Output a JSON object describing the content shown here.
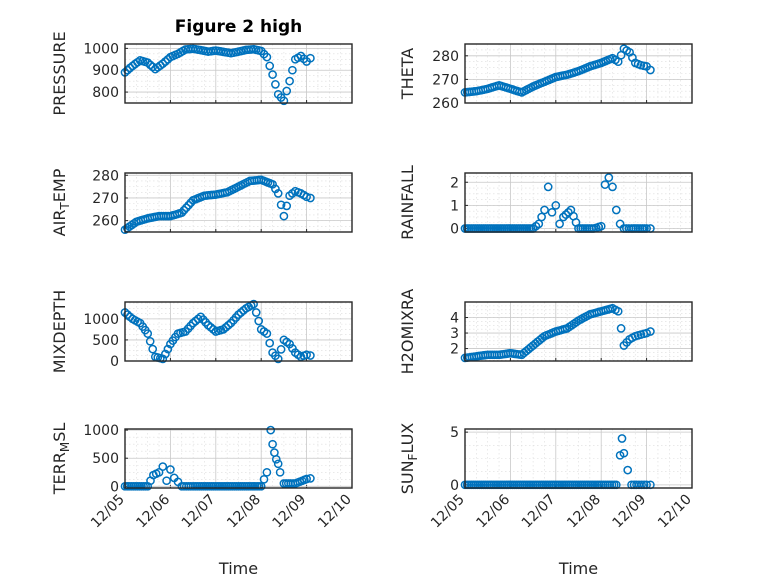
{
  "figure": {
    "title": "Figure 2 high",
    "series_color": "#0072BD",
    "x_label": "Time",
    "x_ticks": [
      "12/05",
      "12/06",
      "12/07",
      "12/08",
      "12/09",
      "12/10"
    ]
  },
  "chart_data": [
    {
      "type": "scatter",
      "ylabel": "PRESSURE",
      "ylim": [
        750,
        1020
      ],
      "yticks": [
        800,
        900,
        1000
      ],
      "xlim": [
        "12/05",
        "12/10"
      ],
      "grid": true,
      "x": [
        "12/05 00:00",
        "12/05 04:00",
        "12/05 08:00",
        "12/05 12:00",
        "12/05 16:00",
        "12/05 20:00",
        "12/06 00:00",
        "12/06 04:00",
        "12/06 08:00",
        "12/06 12:00",
        "12/06 16:00",
        "12/06 20:00",
        "12/07 00:00",
        "12/07 04:00",
        "12/07 08:00",
        "12/07 12:00",
        "12/07 16:00",
        "12/07 20:00",
        "12/08 00:00",
        "12/08 03:00",
        "12/08 06:00",
        "12/08 09:00",
        "12/08 12:00",
        "12/08 15:00",
        "12/08 18:00",
        "12/08 21:00",
        "12/09 00:00",
        "12/09 02:00"
      ],
      "y": [
        890,
        920,
        945,
        935,
        905,
        930,
        960,
        975,
        995,
        998,
        992,
        985,
        990,
        984,
        978,
        985,
        993,
        996,
        988,
        960,
        880,
        790,
        760,
        850,
        950,
        965,
        940,
        955
      ]
    },
    {
      "type": "scatter",
      "ylabel": "THETA",
      "ylim": [
        260,
        285
      ],
      "yticks": [
        260,
        270,
        280
      ],
      "xlim": [
        "12/05",
        "12/10"
      ],
      "grid": true,
      "x": [
        "12/05 00:00",
        "12/05 06:00",
        "12/05 12:00",
        "12/05 18:00",
        "12/06 00:00",
        "12/06 06:00",
        "12/06 12:00",
        "12/06 18:00",
        "12/07 00:00",
        "12/07 06:00",
        "12/07 12:00",
        "12/07 18:00",
        "12/08 00:00",
        "12/08 06:00",
        "12/08 09:00",
        "12/08 12:00",
        "12/08 15:00",
        "12/08 18:00",
        "12/08 21:00",
        "12/09 00:00",
        "12/09 02:00"
      ],
      "y": [
        264.5,
        265,
        266,
        267.5,
        266,
        264.5,
        267,
        269,
        271,
        272,
        273.5,
        275.5,
        277,
        279,
        277.5,
        283,
        281.5,
        277,
        276,
        275.5,
        274
      ]
    },
    {
      "type": "scatter",
      "ylabel": "AIR_TEMP",
      "ylim": [
        255,
        281
      ],
      "yticks": [
        260,
        270,
        280
      ],
      "xlim": [
        "12/05",
        "12/10"
      ],
      "grid": true,
      "x": [
        "12/05 00:00",
        "12/05 06:00",
        "12/05 12:00",
        "12/05 18:00",
        "12/06 00:00",
        "12/06 06:00",
        "12/06 12:00",
        "12/06 18:00",
        "12/07 00:00",
        "12/07 06:00",
        "12/07 12:00",
        "12/07 18:00",
        "12/08 00:00",
        "12/08 06:00",
        "12/08 09:00",
        "12/08 12:00",
        "12/08 15:00",
        "12/08 18:00",
        "12/08 21:00",
        "12/09 00:00",
        "12/09 02:00"
      ],
      "y": [
        256,
        259.5,
        261,
        262,
        262,
        263.5,
        269,
        271,
        271.5,
        272.5,
        275,
        277.5,
        278,
        276,
        272,
        262,
        271,
        273,
        272,
        270.5,
        270
      ]
    },
    {
      "type": "scatter",
      "ylabel": "MIXDEPTH",
      "ylim": [
        0,
        1400
      ],
      "yticks": [
        0,
        500,
        1000
      ],
      "xlim": [
        "12/05",
        "12/10"
      ],
      "grid": true,
      "x": [
        "12/05 00:00",
        "12/05 04:00",
        "12/05 08:00",
        "12/05 12:00",
        "12/05 16:00",
        "12/05 20:00",
        "12/06 00:00",
        "12/06 04:00",
        "12/06 08:00",
        "12/06 12:00",
        "12/06 16:00",
        "12/06 20:00",
        "12/07 00:00",
        "12/07 04:00",
        "12/07 08:00",
        "12/07 12:00",
        "12/07 16:00",
        "12/07 20:00",
        "12/08 00:00",
        "12/08 03:00",
        "12/08 06:00",
        "12/08 09:00",
        "12/08 12:00",
        "12/08 15:00",
        "12/08 18:00",
        "12/08 21:00",
        "12/09 00:00",
        "12/09 02:00"
      ],
      "y": [
        1150,
        1000,
        900,
        650,
        100,
        50,
        400,
        650,
        700,
        900,
        1050,
        850,
        700,
        750,
        900,
        1100,
        1250,
        1350,
        750,
        650,
        200,
        50,
        500,
        400,
        200,
        100,
        150,
        130
      ]
    },
    {
      "type": "scatter",
      "ylabel": "H2OMIXRA",
      "ylim": [
        1.2,
        5
      ],
      "yticks": [
        2,
        3,
        4
      ],
      "xlim": [
        "12/05",
        "12/10"
      ],
      "grid": true,
      "x": [
        "12/05 00:00",
        "12/05 06:00",
        "12/05 12:00",
        "12/05 18:00",
        "12/06 00:00",
        "12/06 06:00",
        "12/06 12:00",
        "12/06 18:00",
        "12/07 00:00",
        "12/07 06:00",
        "12/07 12:00",
        "12/07 18:00",
        "12/08 00:00",
        "12/08 06:00",
        "12/08 09:00",
        "12/08 12:00",
        "12/08 15:00",
        "12/08 18:00",
        "12/08 21:00",
        "12/09 00:00",
        "12/09 02:00"
      ],
      "y": [
        1.4,
        1.5,
        1.6,
        1.6,
        1.7,
        1.6,
        2.2,
        2.8,
        3.1,
        3.3,
        3.8,
        4.2,
        4.4,
        4.6,
        4.4,
        2.2,
        2.6,
        2.8,
        2.9,
        3.0,
        3.1
      ]
    },
    {
      "type": "scatter",
      "ylabel": "RAINFALL",
      "ylim": [
        -0.15,
        2.4
      ],
      "yticks": [
        0,
        1,
        2
      ],
      "xlim": [
        "12/05",
        "12/10"
      ],
      "grid": true,
      "x": [
        "12/05 00:00",
        "12/05 12:00",
        "12/06 00:00",
        "12/06 12:00",
        "12/06 15:00",
        "12/06 18:00",
        "12/06 20:00",
        "12/06 22:00",
        "12/07 00:00",
        "12/07 02:00",
        "12/07 04:00",
        "12/07 08:00",
        "12/07 12:00",
        "12/07 20:00",
        "12/08 00:00",
        "12/08 02:00",
        "12/08 04:00",
        "12/08 06:00",
        "12/08 08:00",
        "12/08 10:00",
        "12/08 12:00",
        "12/08 16:00",
        "12/09 00:00",
        "12/09 02:00"
      ],
      "y": [
        0,
        0,
        0,
        0,
        0.2,
        0.8,
        1.8,
        0.7,
        1.0,
        0.2,
        0.5,
        0.8,
        0,
        0,
        0.1,
        1.9,
        2.2,
        1.8,
        0.8,
        0.2,
        0,
        0,
        0,
        0
      ]
    },
    {
      "type": "scatter",
      "ylabel": "TERR_MSL",
      "ylim": [
        -30,
        1020
      ],
      "yticks": [
        0,
        500,
        1000
      ],
      "xlim": [
        "12/05",
        "12/10"
      ],
      "grid": true,
      "x": [
        "12/05 00:00",
        "12/05 12:00",
        "12/05 15:00",
        "12/05 18:00",
        "12/05 20:00",
        "12/05 22:00",
        "12/06 00:00",
        "12/06 02:00",
        "12/06 04:00",
        "12/06 06:00",
        "12/06 12:00",
        "12/07 00:00",
        "12/07 12:00",
        "12/08 00:00",
        "12/08 03:00",
        "12/08 05:00",
        "12/08 06:00",
        "12/08 07:00",
        "12/08 08:00",
        "12/08 09:00",
        "12/08 10:00",
        "12/08 12:00",
        "12/08 18:00",
        "12/09 00:00",
        "12/09 02:00"
      ],
      "y": [
        0,
        0,
        200,
        250,
        350,
        100,
        300,
        150,
        80,
        0,
        0,
        0,
        0,
        0,
        250,
        1000,
        750,
        600,
        480,
        400,
        250,
        50,
        50,
        130,
        140
      ]
    },
    {
      "type": "scatter",
      "ylabel": "SUN_FLUX",
      "ylim": [
        -0.3,
        5.3
      ],
      "yticks": [
        0,
        5
      ],
      "xlim": [
        "12/05",
        "12/10"
      ],
      "grid": true,
      "x": [
        "12/05 00:00",
        "12/05 12:00",
        "12/06 00:00",
        "12/06 12:00",
        "12/07 00:00",
        "12/07 12:00",
        "12/08 00:00",
        "12/08 08:00",
        "12/08 10:00",
        "12/08 11:00",
        "12/08 12:00",
        "12/08 14:00",
        "12/08 16:00",
        "12/08 20:00",
        "12/09 00:00",
        "12/09 02:00"
      ],
      "y": [
        0,
        0,
        0,
        0,
        0,
        0,
        0,
        0,
        2.8,
        4.4,
        3.0,
        1.4,
        0,
        0,
        0,
        0
      ]
    }
  ]
}
